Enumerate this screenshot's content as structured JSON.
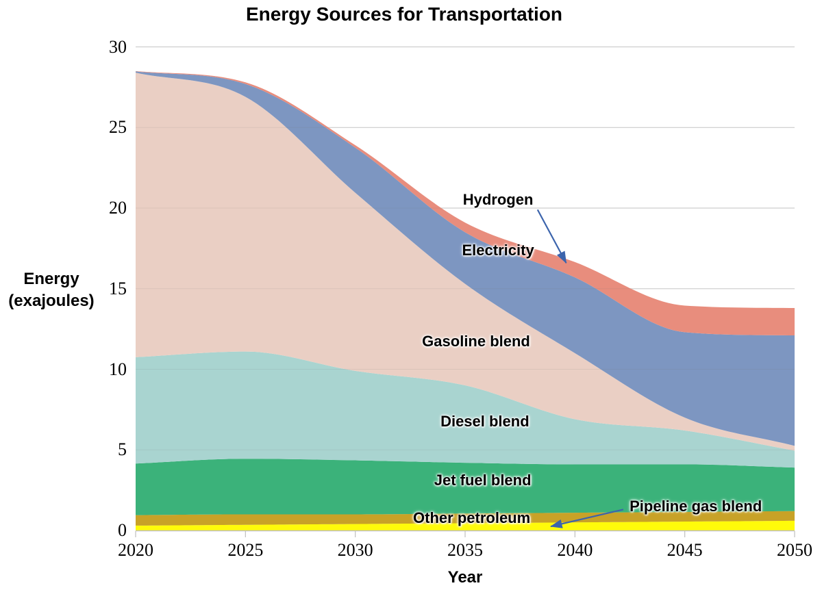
{
  "chart_data": {
    "type": "area",
    "stacked": true,
    "title": "Energy Sources for Transportation",
    "xlabel": "Year",
    "ylabel_lines": [
      "Energy",
      "(exajoules)"
    ],
    "x": [
      2020,
      2025,
      2030,
      2035,
      2040,
      2045,
      2050
    ],
    "xlim": [
      2020,
      2050
    ],
    "ylim": [
      0,
      30
    ],
    "xticks": [
      "2020",
      "2025",
      "2030",
      "2035",
      "2040",
      "2045",
      "2050"
    ],
    "yticks": [
      0,
      5,
      10,
      15,
      20,
      25,
      30
    ],
    "grid": "horizontal",
    "legend": "inline-annotations",
    "series": [
      {
        "name": "Pipeline gas blend",
        "color": "#FFFB0A",
        "values": [
          0.3,
          0.35,
          0.4,
          0.45,
          0.5,
          0.55,
          0.6
        ]
      },
      {
        "name": "Other petroleum",
        "color": "#C8A227",
        "values": [
          0.65,
          0.65,
          0.6,
          0.6,
          0.6,
          0.6,
          0.6
        ]
      },
      {
        "name": "Jet fuel blend",
        "color": "#3BB27A",
        "values": [
          3.2,
          3.45,
          3.35,
          3.15,
          3.0,
          2.95,
          2.7
        ]
      },
      {
        "name": "Diesel blend",
        "color": "#A9D4D0",
        "values": [
          6.6,
          6.65,
          5.55,
          4.8,
          2.8,
          2.1,
          1.05
        ]
      },
      {
        "name": "Gasoline blend",
        "color": "#EACFC4",
        "values": [
          17.65,
          15.8,
          11.05,
          6.3,
          4.1,
          0.8,
          0.3
        ]
      },
      {
        "name": "Electricity",
        "color": "#7D96C1",
        "values": [
          0.08,
          0.8,
          2.8,
          3.2,
          4.7,
          5.3,
          6.85
        ]
      },
      {
        "name": "Hydrogen",
        "color": "#E88D7D",
        "values": [
          0.02,
          0.1,
          0.15,
          0.6,
          0.95,
          1.65,
          1.7
        ]
      }
    ],
    "cumulative_totals": [
      28.5,
      27.8,
      23.9,
      19.1,
      16.65,
      13.95,
      13.8
    ],
    "annotations": [
      {
        "text": "Hydrogen",
        "x": 2036.5,
        "y": 20.5,
        "arrow": {
          "x1": 2038.3,
          "y1": 19.9,
          "x2": 2039.6,
          "y2": 16.6
        }
      },
      {
        "text": "Electricity",
        "x": 2036.5,
        "y": 17.35
      },
      {
        "text": "Gasoline blend",
        "x": 2035.5,
        "y": 11.7
      },
      {
        "text": "Diesel blend",
        "x": 2035.9,
        "y": 6.75
      },
      {
        "text": "Jet fuel blend",
        "x": 2035.8,
        "y": 3.1
      },
      {
        "text": "Other petroleum",
        "x": 2035.3,
        "y": 0.78
      },
      {
        "text": "Pipeline gas blend",
        "x": 2045.5,
        "y": 1.5,
        "arrow": {
          "x1": 2042.2,
          "y1": 1.3,
          "x2": 2038.9,
          "y2": 0.25
        }
      }
    ],
    "colors": {
      "gridline": "#D9D9D9",
      "axis": "#BFBFBF",
      "annotation_arrow": "#3C64AC",
      "text": "#000000",
      "background": "#FFFFFF"
    }
  }
}
